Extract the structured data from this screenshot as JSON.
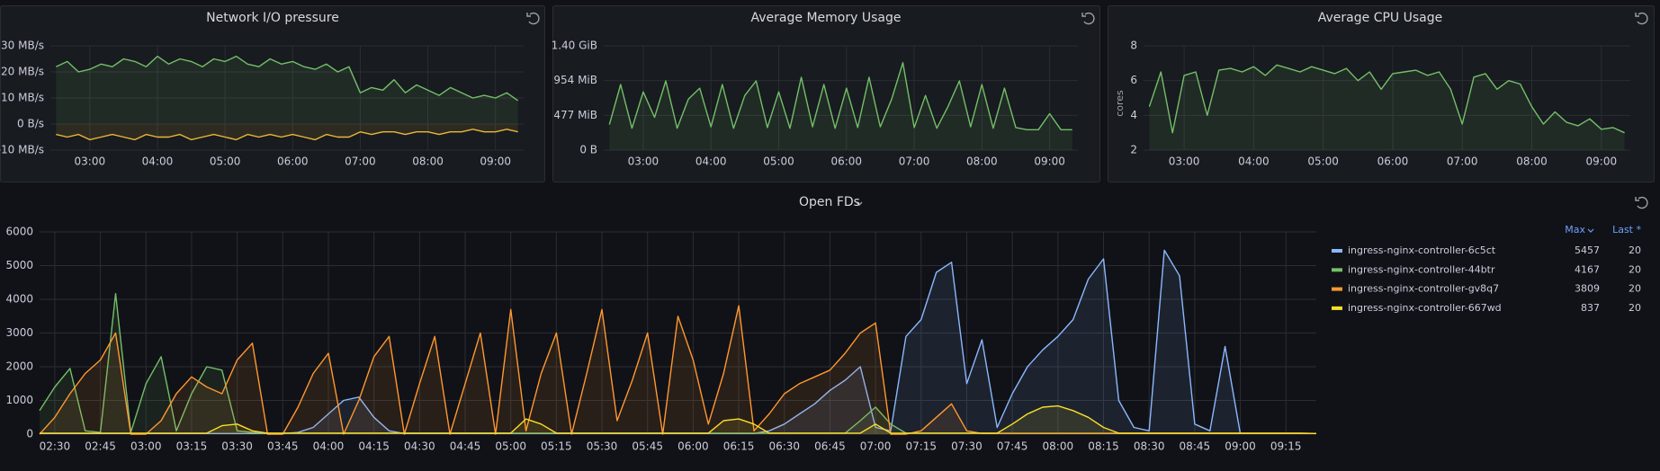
{
  "chart_data": [
    {
      "type": "line",
      "title": "Network I/O pressure",
      "x": [
        "02:30",
        "02:40",
        "02:50",
        "03:00",
        "03:10",
        "03:20",
        "03:30",
        "03:40",
        "03:50",
        "04:00",
        "04:10",
        "04:20",
        "04:30",
        "04:40",
        "04:50",
        "05:00",
        "05:10",
        "05:20",
        "05:30",
        "05:40",
        "05:50",
        "06:00",
        "06:10",
        "06:20",
        "06:30",
        "06:40",
        "06:50",
        "07:00",
        "07:10",
        "07:20",
        "07:30",
        "07:40",
        "07:50",
        "08:00",
        "08:10",
        "08:20",
        "08:30",
        "08:40",
        "08:50",
        "09:00",
        "09:10",
        "09:20"
      ],
      "xlim": [
        "02:25",
        "09:25"
      ],
      "xticks": [
        "03:00",
        "04:00",
        "05:00",
        "06:00",
        "07:00",
        "08:00",
        "09:00"
      ],
      "ylim": [
        -10,
        30
      ],
      "yticks": [
        {
          "value": -10,
          "label": "-10 MB/s"
        },
        {
          "value": 0,
          "label": "0 B/s"
        },
        {
          "value": 10,
          "label": "10 MB/s"
        },
        {
          "value": 20,
          "label": "20 MB/s"
        },
        {
          "value": 30,
          "label": "30 MB/s"
        }
      ],
      "grid": true,
      "series": [
        {
          "color": "#73bf69",
          "values": [
            22,
            24,
            20,
            21,
            23,
            22,
            25,
            24,
            22,
            26,
            23,
            25,
            24,
            22,
            25,
            24,
            26,
            23,
            22,
            25,
            23,
            24,
            22,
            21,
            23,
            20,
            22,
            12,
            14,
            13,
            17,
            12,
            15,
            13,
            11,
            14,
            12,
            10,
            11,
            10,
            12,
            9
          ]
        },
        {
          "color": "#eab839",
          "values": [
            -4,
            -5,
            -4,
            -6,
            -5,
            -4,
            -5,
            -6,
            -4,
            -5,
            -5,
            -4,
            -6,
            -5,
            -4,
            -5,
            -6,
            -4,
            -5,
            -4,
            -5,
            -4,
            -5,
            -6,
            -4,
            -5,
            -5,
            -3,
            -4,
            -3,
            -3,
            -4,
            -3,
            -3,
            -4,
            -3,
            -3,
            -2,
            -3,
            -3,
            -2,
            -3
          ]
        }
      ]
    },
    {
      "type": "line",
      "title": "Average Memory Usage",
      "x": [
        "02:30",
        "02:40",
        "02:50",
        "03:00",
        "03:10",
        "03:20",
        "03:30",
        "03:40",
        "03:50",
        "04:00",
        "04:10",
        "04:20",
        "04:30",
        "04:40",
        "04:50",
        "05:00",
        "05:10",
        "05:20",
        "05:30",
        "05:40",
        "05:50",
        "06:00",
        "06:10",
        "06:20",
        "06:30",
        "06:40",
        "06:50",
        "07:00",
        "07:10",
        "07:20",
        "07:30",
        "07:40",
        "07:50",
        "08:00",
        "08:10",
        "08:20",
        "08:30",
        "08:40",
        "08:50",
        "09:00",
        "09:10",
        "09:20"
      ],
      "xlim": [
        "02:25",
        "09:25"
      ],
      "xticks": [
        "03:00",
        "04:00",
        "05:00",
        "06:00",
        "07:00",
        "08:00",
        "09:00"
      ],
      "ylim": [
        0,
        1431
      ],
      "yticks": [
        {
          "value": 0,
          "label": "0 B"
        },
        {
          "value": 477,
          "label": "477 MiB"
        },
        {
          "value": 954,
          "label": "954 MiB"
        },
        {
          "value": 1431,
          "label": "1.40 GiB"
        }
      ],
      "grid": true,
      "series": [
        {
          "color": "#73bf69",
          "values": [
            350,
            900,
            300,
            800,
            450,
            950,
            300,
            700,
            850,
            320,
            900,
            300,
            750,
            950,
            310,
            800,
            300,
            1000,
            320,
            900,
            300,
            850,
            310,
            1000,
            320,
            700,
            1200,
            310,
            750,
            300,
            600,
            950,
            320,
            900,
            300,
            850,
            310,
            280,
            280,
            500,
            280,
            280
          ]
        }
      ]
    },
    {
      "type": "line",
      "title": "Average CPU Usage",
      "ylabel": "cores",
      "x": [
        "02:30",
        "02:40",
        "02:50",
        "03:00",
        "03:10",
        "03:20",
        "03:30",
        "03:40",
        "03:50",
        "04:00",
        "04:10",
        "04:20",
        "04:30",
        "04:40",
        "04:50",
        "05:00",
        "05:10",
        "05:20",
        "05:30",
        "05:40",
        "05:50",
        "06:00",
        "06:10",
        "06:20",
        "06:30",
        "06:40",
        "06:50",
        "07:00",
        "07:10",
        "07:20",
        "07:30",
        "07:40",
        "07:50",
        "08:00",
        "08:10",
        "08:20",
        "08:30",
        "08:40",
        "08:50",
        "09:00",
        "09:10",
        "09:20"
      ],
      "xlim": [
        "02:25",
        "09:25"
      ],
      "xticks": [
        "03:00",
        "04:00",
        "05:00",
        "06:00",
        "07:00",
        "08:00",
        "09:00"
      ],
      "ylim": [
        2,
        8
      ],
      "yticks": [
        2,
        4,
        6,
        8
      ],
      "grid": true,
      "series": [
        {
          "color": "#73bf69",
          "values": [
            4.5,
            6.5,
            3,
            6.3,
            6.5,
            4,
            6.6,
            6.7,
            6.5,
            6.8,
            6.3,
            6.9,
            6.7,
            6.5,
            6.8,
            6.6,
            6.4,
            6.7,
            6,
            6.5,
            5.5,
            6.4,
            6.5,
            6.6,
            6.3,
            6.5,
            5.5,
            3.5,
            6.2,
            6.4,
            5.5,
            6,
            5.8,
            4.5,
            3.5,
            4.2,
            3.6,
            3.4,
            3.8,
            3.2,
            3.3,
            3
          ]
        }
      ]
    },
    {
      "type": "line",
      "title": "Open FDs",
      "x": [
        "02:25",
        "02:30",
        "02:35",
        "02:40",
        "02:45",
        "02:50",
        "02:55",
        "03:00",
        "03:05",
        "03:10",
        "03:15",
        "03:20",
        "03:25",
        "03:30",
        "03:35",
        "03:40",
        "03:45",
        "03:50",
        "03:55",
        "04:00",
        "04:05",
        "04:10",
        "04:15",
        "04:20",
        "04:25",
        "04:30",
        "04:35",
        "04:40",
        "04:45",
        "04:50",
        "04:55",
        "05:00",
        "05:05",
        "05:10",
        "05:15",
        "05:20",
        "05:25",
        "05:30",
        "05:35",
        "05:40",
        "05:45",
        "05:50",
        "05:55",
        "06:00",
        "06:05",
        "06:10",
        "06:15",
        "06:20",
        "06:25",
        "06:30",
        "06:35",
        "06:40",
        "06:45",
        "06:50",
        "06:55",
        "07:00",
        "07:05",
        "07:10",
        "07:15",
        "07:20",
        "07:25",
        "07:30",
        "07:35",
        "07:40",
        "07:45",
        "07:50",
        "07:55",
        "08:00",
        "08:05",
        "08:10",
        "08:15",
        "08:20",
        "08:25",
        "08:30",
        "08:35",
        "08:40",
        "08:45",
        "08:50",
        "08:55",
        "09:00",
        "09:05",
        "09:10",
        "09:15",
        "09:20",
        "09:25"
      ],
      "xlim": [
        "02:25",
        "09:25"
      ],
      "xticks": [
        "02:30",
        "02:45",
        "03:00",
        "03:15",
        "03:30",
        "03:45",
        "04:00",
        "04:15",
        "04:30",
        "04:45",
        "05:00",
        "05:15",
        "05:30",
        "05:45",
        "06:00",
        "06:15",
        "06:30",
        "06:45",
        "07:00",
        "07:15",
        "07:30",
        "07:45",
        "08:00",
        "08:15",
        "08:30",
        "08:45",
        "09:00",
        "09:15"
      ],
      "ylim": [
        0,
        6000
      ],
      "yticks": [
        0,
        1000,
        2000,
        3000,
        4000,
        5000,
        6000
      ],
      "grid": true,
      "legend_columns": [
        "Max",
        "Last *"
      ],
      "series": [
        {
          "name": "ingress-nginx-controller-6c5ct",
          "color": "#8ab8ff",
          "legend_max": 5457,
          "legend_last": 20,
          "values": [
            20,
            20,
            20,
            20,
            20,
            20,
            20,
            20,
            20,
            20,
            20,
            20,
            20,
            20,
            20,
            20,
            20,
            50,
            200,
            600,
            1000,
            1100,
            500,
            100,
            20,
            20,
            20,
            20,
            20,
            20,
            20,
            20,
            20,
            20,
            20,
            20,
            20,
            20,
            20,
            20,
            20,
            20,
            20,
            20,
            20,
            20,
            20,
            20,
            100,
            300,
            600,
            900,
            1300,
            1600,
            2000,
            200,
            100,
            2900,
            3400,
            4800,
            5100,
            1500,
            2800,
            200,
            1200,
            2000,
            2500,
            2900,
            3400,
            4600,
            5200,
            1000,
            200,
            100,
            5457,
            4700,
            300,
            100,
            2600,
            20,
            20,
            20,
            20,
            20,
            20
          ]
        },
        {
          "name": "ingress-nginx-controller-44btr",
          "color": "#73bf69",
          "legend_max": 4167,
          "legend_last": 20,
          "values": [
            700,
            1400,
            1950,
            100,
            50,
            4167,
            50,
            1500,
            2300,
            100,
            1200,
            2000,
            1900,
            100,
            50,
            30,
            30,
            30,
            30,
            30,
            30,
            30,
            30,
            30,
            30,
            30,
            30,
            30,
            30,
            30,
            30,
            30,
            30,
            30,
            30,
            30,
            30,
            30,
            30,
            30,
            30,
            30,
            30,
            30,
            30,
            30,
            30,
            30,
            30,
            30,
            30,
            30,
            30,
            30,
            400,
            800,
            300,
            30,
            30,
            30,
            30,
            30,
            30,
            30,
            30,
            30,
            30,
            30,
            30,
            30,
            30,
            30,
            30,
            30,
            30,
            30,
            30,
            30,
            30,
            30,
            30,
            30,
            30,
            30,
            20
          ]
        },
        {
          "name": "ingress-nginx-controller-gv8q7",
          "color": "#ff9830",
          "legend_max": 3809,
          "legend_last": 20,
          "values": [
            0,
            500,
            1200,
            1800,
            2200,
            3000,
            0,
            0,
            400,
            1200,
            1700,
            1400,
            1200,
            2200,
            2700,
            0,
            0,
            800,
            1800,
            2400,
            0,
            1000,
            2300,
            2900,
            0,
            1500,
            2900,
            0,
            1500,
            3000,
            0,
            3700,
            100,
            1800,
            3000,
            0,
            1800,
            3700,
            400,
            1600,
            3000,
            0,
            3500,
            2200,
            300,
            1800,
            3809,
            100,
            600,
            1200,
            1500,
            1700,
            1900,
            2400,
            3000,
            3300,
            0,
            0,
            100,
            500,
            900,
            100,
            20,
            20,
            20,
            20,
            20,
            20,
            20,
            20,
            20,
            20,
            20,
            20,
            20,
            20,
            20,
            20,
            20,
            20,
            20,
            20,
            20,
            20,
            20
          ]
        },
        {
          "name": "ingress-nginx-controller-667wd",
          "color": "#fade2a",
          "legend_max": 837,
          "legend_last": 20,
          "values": [
            30,
            30,
            30,
            30,
            30,
            30,
            30,
            30,
            30,
            30,
            30,
            30,
            250,
            300,
            100,
            30,
            30,
            30,
            30,
            30,
            30,
            30,
            30,
            30,
            30,
            30,
            30,
            30,
            30,
            30,
            30,
            30,
            450,
            300,
            30,
            30,
            30,
            30,
            30,
            30,
            30,
            30,
            30,
            30,
            30,
            400,
            450,
            300,
            30,
            30,
            30,
            30,
            30,
            30,
            30,
            300,
            30,
            30,
            30,
            30,
            30,
            30,
            30,
            30,
            300,
            600,
            800,
            837,
            700,
            500,
            200,
            30,
            30,
            30,
            30,
            30,
            30,
            30,
            30,
            30,
            30,
            30,
            30,
            30,
            20
          ]
        }
      ]
    }
  ]
}
